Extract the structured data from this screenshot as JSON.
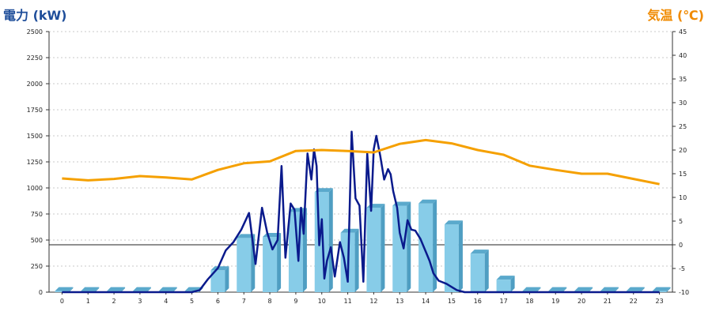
{
  "chart_data": {
    "type": "bar",
    "categories": [
      "0",
      "1",
      "2",
      "3",
      "4",
      "5",
      "6",
      "7",
      "8",
      "9",
      "10",
      "11",
      "12",
      "13",
      "14",
      "15",
      "16",
      "17",
      "18",
      "19",
      "20",
      "21",
      "22",
      "23"
    ],
    "left_axis": {
      "label": "電力 (kW)",
      "ylim": [
        0,
        2500
      ],
      "ticks": [
        "0",
        "250",
        "500",
        "750",
        "1000",
        "1250",
        "1500",
        "1750",
        "2000",
        "2250",
        "2500"
      ],
      "color": "#1f4e9a"
    },
    "right_axis": {
      "label": "気温 (℃)",
      "ylim": [
        -10,
        45
      ],
      "ticks": [
        "-10",
        "-5",
        "0",
        "5",
        "10",
        "15",
        "20",
        "25",
        "30",
        "35",
        "40",
        "45"
      ],
      "color": "#f08a00"
    },
    "series": [
      {
        "kind": "bar",
        "axis": "left",
        "color": "#87cce8",
        "values": [
          10,
          10,
          10,
          10,
          10,
          10,
          210,
          520,
          530,
          770,
          960,
          570,
          810,
          830,
          850,
          650,
          370,
          120,
          10,
          10,
          10,
          10,
          10,
          10
        ]
      },
      {
        "kind": "line",
        "axis": "left",
        "color": "#0a1a8c",
        "x": [
          0,
          1,
          2,
          3,
          4,
          5,
          5.3,
          5.6,
          6,
          6.3,
          6.6,
          6.9,
          7.2,
          7.45,
          7.7,
          7.9,
          8.1,
          8.3,
          8.45,
          8.6,
          8.8,
          8.95,
          9.1,
          9.2,
          9.3,
          9.45,
          9.6,
          9.7,
          9.8,
          9.9,
          10,
          10.1,
          10.2,
          10.35,
          10.5,
          10.7,
          10.85,
          11,
          11.15,
          11.3,
          11.45,
          11.6,
          11.75,
          11.9,
          12,
          12.1,
          12.25,
          12.4,
          12.55,
          12.65,
          12.75,
          12.9,
          13,
          13.15,
          13.3,
          13.45,
          13.6,
          13.8,
          14,
          14.15,
          14.3,
          14.5,
          14.8,
          15,
          15.2,
          15.5,
          16,
          16.5,
          17,
          17.5,
          18,
          19,
          20,
          21,
          22,
          23
        ],
        "y": [
          0,
          0,
          0,
          0,
          0,
          0,
          20,
          120,
          230,
          400,
          480,
          600,
          760,
          270,
          810,
          570,
          410,
          500,
          1210,
          330,
          850,
          790,
          300,
          810,
          560,
          1330,
          1080,
          1370,
          1210,
          450,
          700,
          130,
          300,
          430,
          150,
          480,
          330,
          100,
          1540,
          900,
          830,
          100,
          1330,
          780,
          1370,
          1500,
          1310,
          1080,
          1180,
          1130,
          970,
          810,
          570,
          420,
          690,
          600,
          590,
          510,
          390,
          300,
          180,
          110,
          80,
          50,
          20,
          0,
          0,
          0,
          0,
          0,
          0,
          0,
          0,
          0,
          0,
          0
        ]
      },
      {
        "kind": "line",
        "axis": "right",
        "color": "#f5a000",
        "values": [
          14.0,
          13.6,
          13.9,
          14.5,
          14.2,
          13.8,
          15.8,
          17.2,
          17.6,
          19.8,
          20.0,
          19.8,
          19.5,
          21.3,
          22.1,
          21.4,
          20.0,
          19.0,
          16.7,
          15.8,
          15.0,
          15.0,
          13.9,
          12.8
        ]
      }
    ],
    "grid": true,
    "zero_reference_line": true
  }
}
